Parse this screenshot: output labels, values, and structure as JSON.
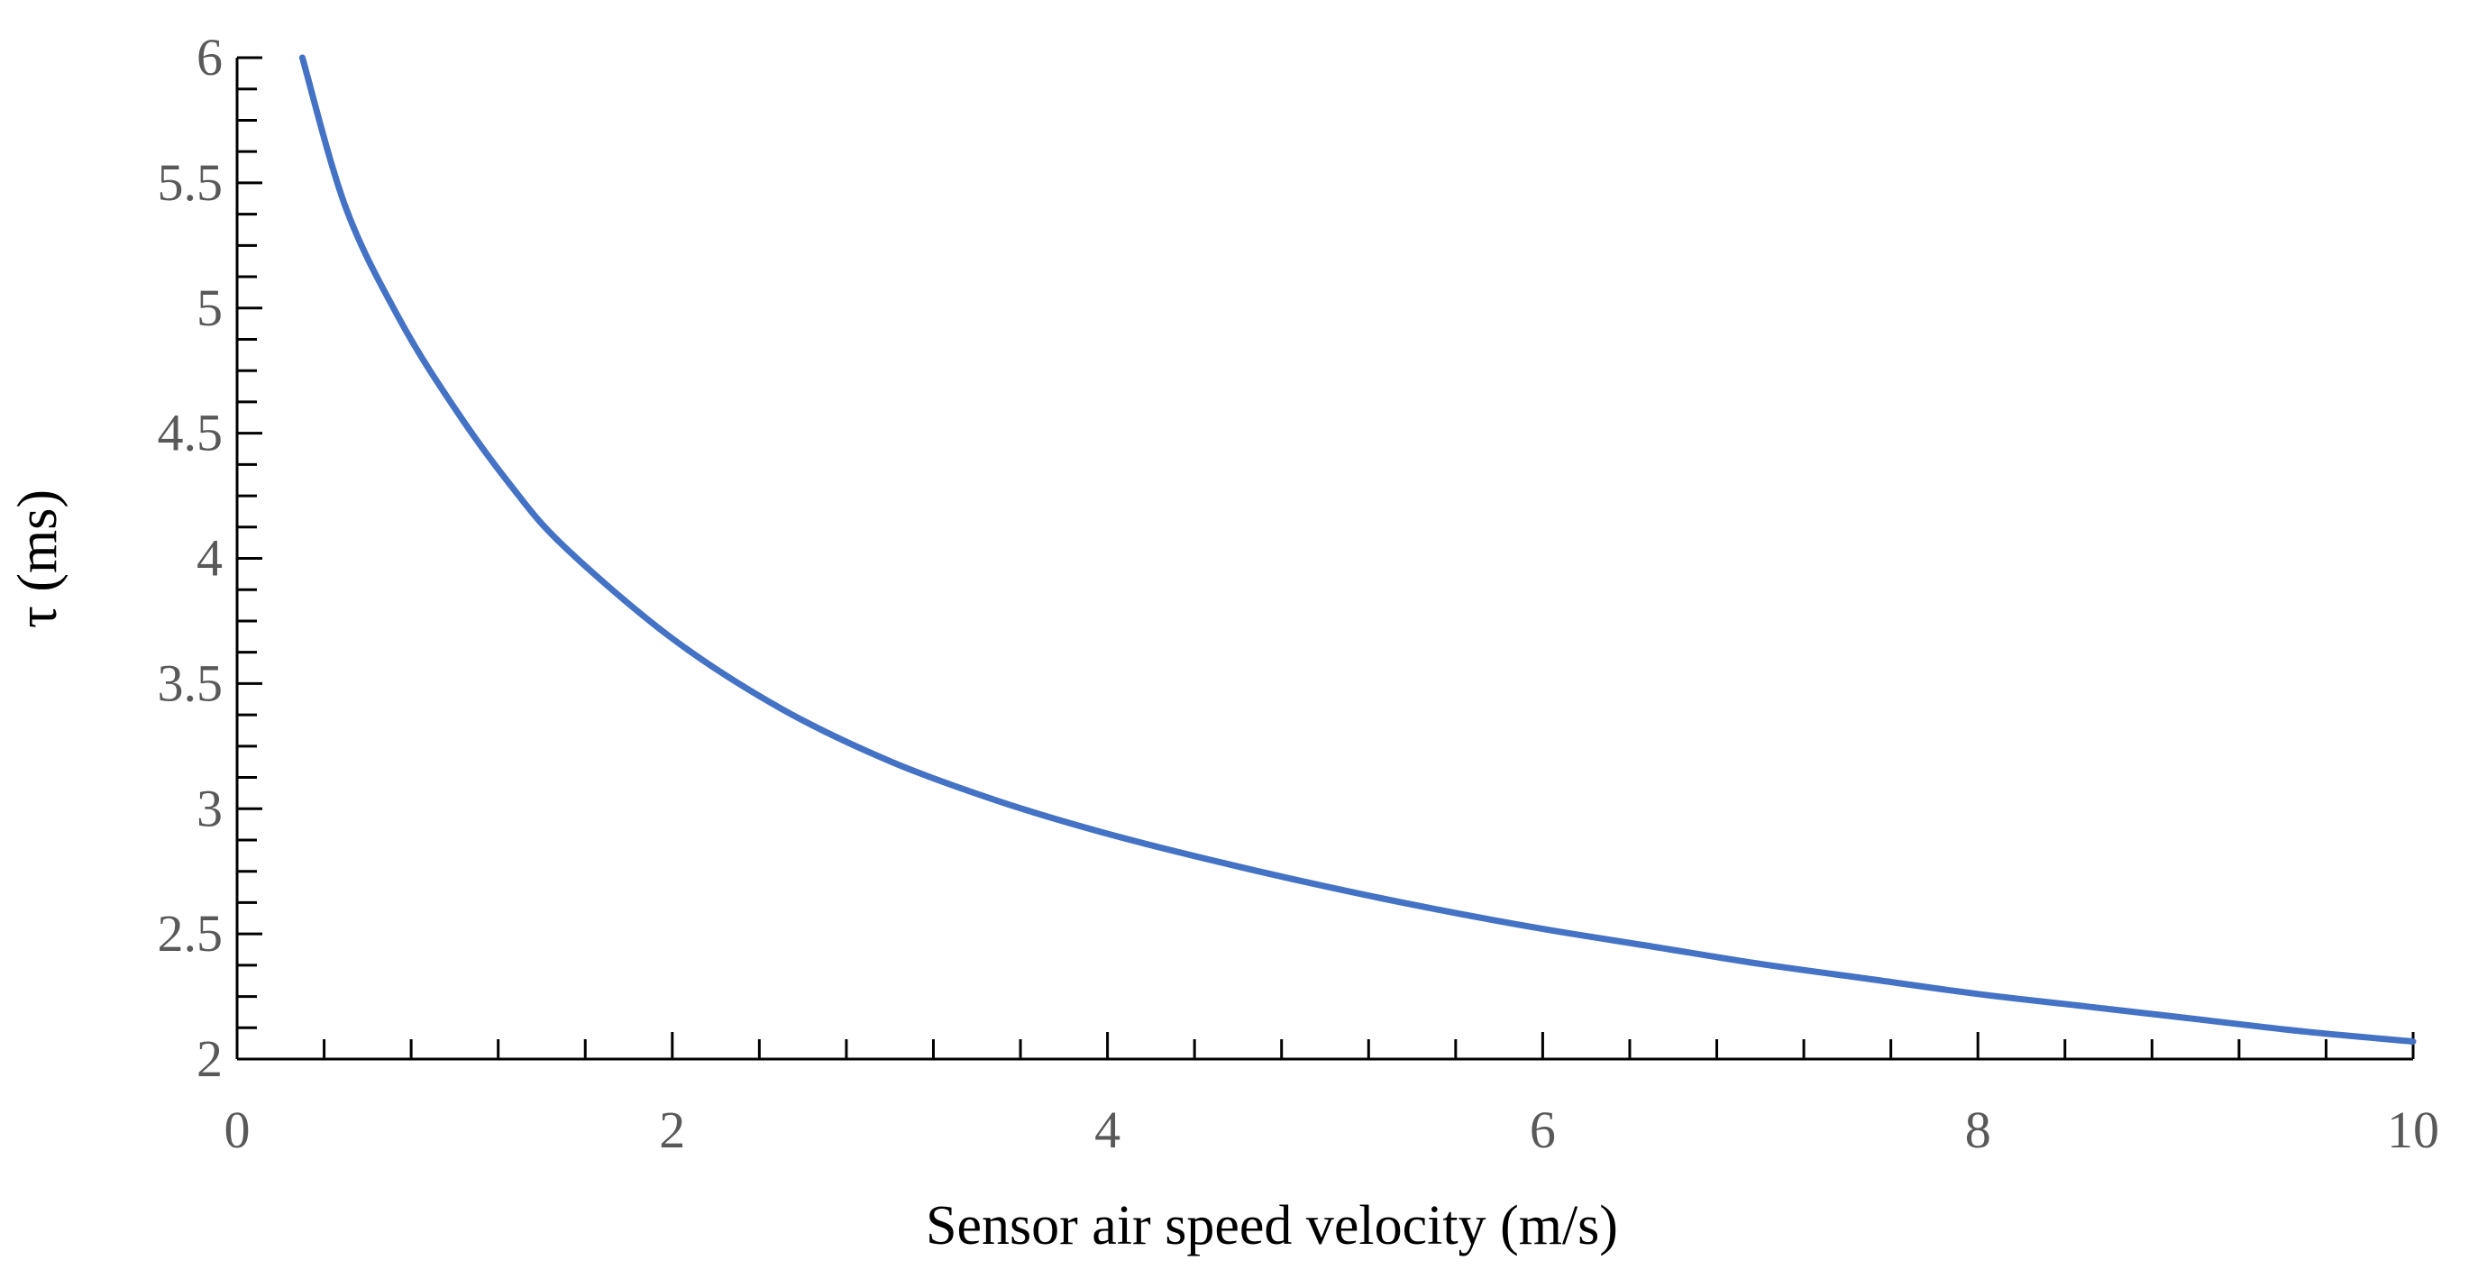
{
  "chart_data": {
    "type": "line",
    "title": "",
    "xlabel": "Sensor air speed velocity (m/s)",
    "ylabel": "τ (ms)",
    "xlim": [
      0,
      10
    ],
    "ylim": [
      2,
      6
    ],
    "x_major_ticks": [
      0,
      2,
      4,
      6,
      8,
      10
    ],
    "x_tick_labels": [
      "0",
      "2",
      "4",
      "6",
      "8",
      "10"
    ],
    "x_minor_step": 0.4,
    "y_major_ticks": [
      2,
      2.5,
      3,
      3.5,
      4,
      4.5,
      5,
      5.5,
      6
    ],
    "y_tick_labels": [
      "2",
      "2.5",
      "3",
      "3.5",
      "4",
      "4.5",
      "5",
      "5.5",
      "6"
    ],
    "y_minor_step": 0.125,
    "grid": false,
    "legend": "none",
    "series": [
      {
        "name": "τ",
        "color": "#4472C4",
        "x": [
          0.3,
          0.5,
          0.75,
          1.0,
          1.25,
          1.5,
          2.0,
          2.5,
          3.0,
          3.5,
          4.0,
          4.5,
          5.0,
          5.5,
          6.0,
          6.5,
          7.0,
          7.5,
          8.0,
          8.5,
          9.0,
          9.5,
          10.0
        ],
        "y": [
          6.0,
          5.4,
          4.95,
          4.6,
          4.3,
          4.05,
          3.68,
          3.4,
          3.19,
          3.03,
          2.9,
          2.79,
          2.69,
          2.6,
          2.52,
          2.45,
          2.38,
          2.32,
          2.26,
          2.21,
          2.16,
          2.11,
          2.07
        ]
      }
    ]
  }
}
